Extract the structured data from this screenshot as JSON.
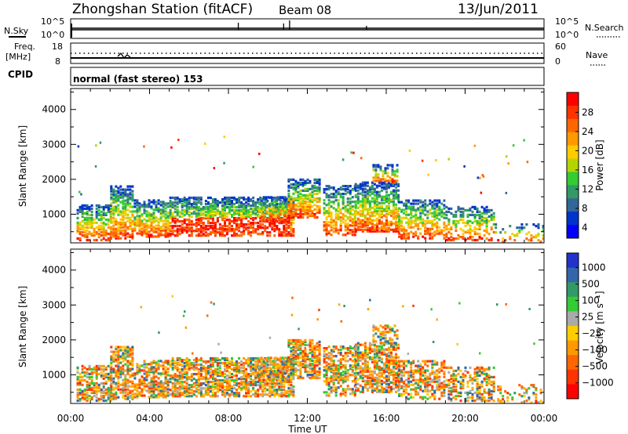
{
  "header": {
    "station": "Zhongshan Station (fitACF)",
    "beam": "Beam 08",
    "date": "13/Jun/2011"
  },
  "noise_panel": {
    "left_label": "N.Sky",
    "right_label": "N.Search",
    "left_ticks": [
      "10^5",
      "10^0"
    ],
    "right_ticks": [
      "10^5",
      "10^0"
    ]
  },
  "freq_panel": {
    "left_label_line1": "Freq.",
    "left_label_line2": "[MHz]",
    "right_label": "Nave",
    "left_ticks": [
      "18",
      "8"
    ],
    "right_ticks": [
      "60",
      "0"
    ]
  },
  "cpid": {
    "label": "CPID",
    "text": "normal (fast stereo) 153"
  },
  "x_axis": {
    "label": "Time UT",
    "ticks": [
      "00:00",
      "04:00",
      "08:00",
      "12:00",
      "16:00",
      "20:00",
      "00:00"
    ]
  },
  "chart_data": [
    {
      "type": "heatmap",
      "quantity": "power",
      "ylabel": "Slant Range [km]",
      "ylim": [
        180,
        4600
      ],
      "yticks": [
        "4000",
        "3000",
        "2000",
        "1000"
      ],
      "xlim": [
        0,
        24
      ],
      "colorbar": {
        "label": "Power [dB]",
        "tick_labels": [
          "28",
          "24",
          "20",
          "16",
          "12",
          "8",
          "4"
        ],
        "colors": [
          "#ff0000",
          "#ff3300",
          "#ff6600",
          "#ff9900",
          "#ffcc00",
          "#b4d400",
          "#33cc33",
          "#339966",
          "#336699",
          "#0033cc",
          "#0000ff"
        ]
      }
    },
    {
      "type": "heatmap",
      "quantity": "velocity",
      "ylabel": "Slant Range [km]",
      "ylim": [
        180,
        4600
      ],
      "yticks": [
        "4000",
        "3000",
        "2000",
        "1000"
      ],
      "xlim": [
        0,
        24
      ],
      "colorbar": {
        "label": "Velocity [m s⁻¹]",
        "tick_labels": [
          "1000",
          "500",
          "100",
          "25",
          "−25",
          "−100",
          "−500",
          "−1000"
        ],
        "colors": [
          "#2233cc",
          "#3366aa",
          "#339966",
          "#33cc33",
          "#aaaaaa",
          "#ffcc00",
          "#ff9900",
          "#ff6600",
          "#ff3300",
          "#ff0000"
        ]
      }
    }
  ],
  "echo_regions": [
    {
      "t0": 0.3,
      "t1": 2.0,
      "r0": 250,
      "r1": 1250,
      "d": 0.55
    },
    {
      "t0": 2.0,
      "t1": 3.2,
      "r0": 300,
      "r1": 1800,
      "d": 0.6
    },
    {
      "t0": 3.2,
      "t1": 5.0,
      "r0": 350,
      "r1": 1400,
      "d": 0.55
    },
    {
      "t0": 5.0,
      "t1": 11.3,
      "r0": 380,
      "r1": 1500,
      "d": 0.62
    },
    {
      "t0": 9.5,
      "t1": 11.0,
      "r0": 800,
      "r1": 1500,
      "d": 0.45
    },
    {
      "t0": 11.0,
      "t1": 12.6,
      "r0": 900,
      "r1": 2000,
      "d": 0.6
    },
    {
      "t0": 12.8,
      "t1": 14.4,
      "r0": 400,
      "r1": 1800,
      "d": 0.5
    },
    {
      "t0": 14.4,
      "t1": 16.6,
      "r0": 500,
      "r1": 1900,
      "d": 0.6
    },
    {
      "t0": 15.3,
      "t1": 16.6,
      "r0": 1900,
      "r1": 2400,
      "d": 0.4
    },
    {
      "t0": 16.6,
      "t1": 19.0,
      "r0": 300,
      "r1": 1400,
      "d": 0.5
    },
    {
      "t0": 19.0,
      "t1": 21.5,
      "r0": 250,
      "r1": 1200,
      "d": 0.42
    },
    {
      "t0": 21.5,
      "t1": 24.0,
      "r0": 200,
      "r1": 700,
      "d": 0.2
    }
  ]
}
